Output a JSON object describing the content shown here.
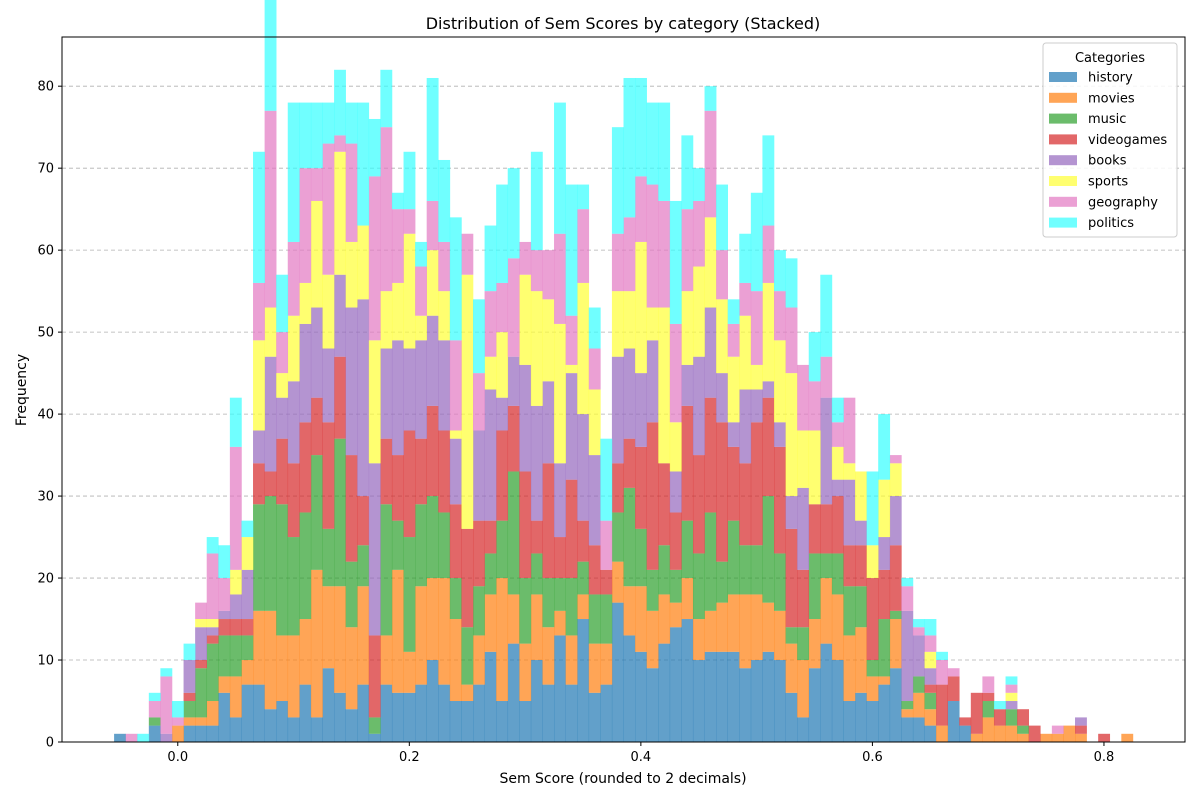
{
  "chart_data": {
    "type": "bar",
    "stacked": true,
    "title": "Distribution of Sem Scores by category (Stacked)",
    "xlabel": "Sem Score (rounded to 2 decimals)",
    "ylabel": "Frequency",
    "xlim": [
      -0.1,
      0.87
    ],
    "ylim": [
      0,
      86
    ],
    "xticks": [
      0.0,
      0.2,
      0.4,
      0.6,
      0.8
    ],
    "xtick_labels": [
      "0.0",
      "0.2",
      "0.4",
      "0.6",
      "0.8"
    ],
    "yticks": [
      0,
      10,
      20,
      30,
      40,
      50,
      60,
      70,
      80
    ],
    "ytick_labels": [
      "0",
      "10",
      "20",
      "30",
      "40",
      "50",
      "60",
      "70",
      "80"
    ],
    "grid": "y-dashed",
    "legend_title": "Categories",
    "legend_position": "top-right",
    "x": [
      -0.05,
      -0.04,
      -0.03,
      -0.02,
      -0.01,
      0.0,
      0.01,
      0.02,
      0.03,
      0.04,
      0.05,
      0.06,
      0.07,
      0.08,
      0.09,
      0.1,
      0.11,
      0.12,
      0.13,
      0.14,
      0.15,
      0.16,
      0.17,
      0.18,
      0.19,
      0.2,
      0.21,
      0.22,
      0.23,
      0.24,
      0.25,
      0.26,
      0.27,
      0.28,
      0.29,
      0.3,
      0.31,
      0.32,
      0.33,
      0.34,
      0.35,
      0.36,
      0.37,
      0.38,
      0.39,
      0.4,
      0.41,
      0.42,
      0.43,
      0.44,
      0.45,
      0.46,
      0.47,
      0.48,
      0.49,
      0.5,
      0.51,
      0.52,
      0.53,
      0.54,
      0.55,
      0.56,
      0.57,
      0.58,
      0.59,
      0.6,
      0.61,
      0.62,
      0.63,
      0.64,
      0.65,
      0.66,
      0.67,
      0.68,
      0.69,
      0.7,
      0.71,
      0.72,
      0.73,
      0.74,
      0.75,
      0.76,
      0.77,
      0.78,
      0.79,
      0.8,
      0.81,
      0.82
    ],
    "series": [
      {
        "name": "history",
        "color": "#1f77b4",
        "values": [
          1,
          0,
          0,
          2,
          0,
          0,
          2,
          2,
          2,
          6,
          3,
          7,
          7,
          4,
          5,
          3,
          7,
          3,
          9,
          6,
          4,
          7,
          1,
          7,
          6,
          6,
          7,
          10,
          7,
          5,
          5,
          7,
          11,
          5,
          12,
          5,
          10,
          7,
          13,
          7,
          15,
          6,
          7,
          17,
          13,
          11,
          9,
          12,
          14,
          15,
          10,
          11,
          11,
          11,
          9,
          10,
          11,
          10,
          6,
          3,
          9,
          12,
          10,
          5,
          6,
          5,
          7,
          9,
          3,
          3,
          2,
          0,
          5,
          2,
          0,
          0,
          0,
          0,
          0,
          0,
          0,
          0,
          0,
          0,
          0,
          0,
          0,
          0
        ]
      },
      {
        "name": "movies",
        "color": "#ff7f0e",
        "values": [
          0,
          0,
          0,
          0,
          0,
          2,
          1,
          1,
          3,
          2,
          5,
          3,
          9,
          12,
          8,
          10,
          8,
          18,
          10,
          13,
          10,
          12,
          0,
          6,
          15,
          5,
          12,
          10,
          13,
          10,
          2,
          6,
          7,
          15,
          6,
          7,
          8,
          7,
          3,
          6,
          3,
          6,
          5,
          5,
          6,
          8,
          7,
          6,
          3,
          5,
          5,
          5,
          6,
          7,
          9,
          8,
          6,
          6,
          6,
          7,
          6,
          8,
          8,
          8,
          8,
          3,
          1,
          6,
          1,
          3,
          2,
          2,
          0,
          0,
          1,
          3,
          2,
          2,
          1,
          0,
          1,
          1,
          2,
          1,
          0,
          0,
          0,
          1
        ]
      },
      {
        "name": "music",
        "color": "#2ca02c",
        "values": [
          0,
          0,
          0,
          1,
          0,
          0,
          2,
          6,
          7,
          5,
          5,
          3,
          13,
          14,
          16,
          12,
          13,
          14,
          7,
          18,
          8,
          5,
          2,
          16,
          6,
          14,
          10,
          10,
          8,
          5,
          7,
          6,
          5,
          7,
          15,
          8,
          5,
          6,
          4,
          7,
          4,
          6,
          6,
          6,
          12,
          7,
          5,
          6,
          4,
          7,
          8,
          12,
          5,
          9,
          6,
          6,
          13,
          7,
          2,
          4,
          8,
          3,
          5,
          6,
          5,
          2,
          7,
          1,
          1,
          2,
          2,
          0,
          0,
          0,
          0,
          2,
          0,
          2,
          1,
          0,
          0,
          0,
          0,
          0,
          0,
          0,
          0,
          0
        ]
      },
      {
        "name": "videogames",
        "color": "#d62728",
        "values": [
          0,
          0,
          0,
          0,
          0,
          0,
          1,
          1,
          1,
          2,
          2,
          2,
          5,
          3,
          8,
          9,
          11,
          7,
          13,
          10,
          13,
          6,
          10,
          8,
          8,
          13,
          8,
          11,
          10,
          9,
          12,
          8,
          4,
          11,
          8,
          13,
          4,
          14,
          5,
          12,
          5,
          6,
          3,
          6,
          6,
          10,
          18,
          10,
          7,
          14,
          12,
          14,
          17,
          9,
          10,
          15,
          12,
          13,
          12,
          7,
          6,
          6,
          7,
          5,
          5,
          10,
          6,
          8,
          0,
          0,
          1,
          5,
          3,
          1,
          5,
          1,
          2,
          0,
          2,
          2,
          0,
          0,
          0,
          1,
          0,
          1,
          0,
          0
        ]
      },
      {
        "name": "books",
        "color": "#9467bd",
        "values": [
          0,
          0,
          0,
          0,
          1,
          0,
          4,
          4,
          1,
          1,
          3,
          6,
          4,
          14,
          5,
          10,
          12,
          11,
          9,
          10,
          18,
          24,
          21,
          11,
          14,
          10,
          12,
          11,
          11,
          8,
          0,
          11,
          16,
          4,
          6,
          13,
          14,
          10,
          9,
          13,
          13,
          11,
          0,
          13,
          11,
          9,
          10,
          0,
          5,
          5,
          12,
          11,
          6,
          3,
          9,
          4,
          2,
          3,
          4,
          10,
          0,
          13,
          2,
          8,
          3,
          0,
          4,
          6,
          11,
          5,
          2,
          0,
          0,
          0,
          0,
          0,
          0,
          1,
          0,
          0,
          0,
          0,
          0,
          1,
          0,
          0,
          0,
          0
        ]
      },
      {
        "name": "sports",
        "color": "#ffff33",
        "values": [
          0,
          0,
          0,
          0,
          0,
          0,
          0,
          1,
          1,
          0,
          3,
          4,
          11,
          6,
          3,
          8,
          5,
          13,
          9,
          15,
          8,
          9,
          15,
          7,
          7,
          14,
          3,
          8,
          6,
          1,
          31,
          0,
          4,
          8,
          0,
          11,
          14,
          10,
          17,
          1,
          16,
          8,
          0,
          8,
          7,
          16,
          4,
          19,
          6,
          9,
          11,
          11,
          9,
          8,
          9,
          3,
          12,
          10,
          15,
          7,
          9,
          0,
          4,
          2,
          6,
          4,
          7,
          4,
          0,
          0,
          2,
          0,
          0,
          0,
          0,
          0,
          0,
          1,
          0,
          0,
          0,
          0,
          0,
          0,
          0,
          0,
          0,
          0
        ]
      },
      {
        "name": "geography",
        "color": "#e377c2",
        "values": [
          0,
          1,
          0,
          2,
          7,
          1,
          0,
          2,
          8,
          4,
          15,
          0,
          7,
          24,
          5,
          9,
          14,
          4,
          16,
          2,
          12,
          0,
          20,
          20,
          9,
          3,
          6,
          6,
          6,
          11,
          5,
          7,
          8,
          6,
          12,
          4,
          5,
          6,
          11,
          6,
          9,
          5,
          6,
          7,
          9,
          8,
          15,
          13,
          12,
          10,
          8,
          13,
          6,
          4,
          4,
          9,
          7,
          6,
          8,
          8,
          6,
          5,
          3,
          8,
          0,
          0,
          0,
          1,
          3,
          1,
          2,
          3,
          1,
          0,
          0,
          2,
          0,
          1,
          0,
          0,
          0,
          1,
          0,
          0,
          0,
          0,
          0,
          0
        ]
      },
      {
        "name": "politics",
        "color": "#33ffff",
        "values": [
          0,
          0,
          1,
          1,
          1,
          2,
          2,
          0,
          2,
          4,
          6,
          2,
          16,
          14,
          7,
          17,
          8,
          8,
          5,
          8,
          5,
          15,
          7,
          7,
          2,
          7,
          3,
          15,
          10,
          15,
          0,
          9,
          8,
          12,
          11,
          0,
          12,
          0,
          16,
          16,
          3,
          5,
          10,
          13,
          17,
          12,
          10,
          12,
          15,
          9,
          4,
          3,
          8,
          3,
          6,
          12,
          11,
          5,
          6,
          0,
          6,
          10,
          3,
          0,
          0,
          9,
          8,
          0,
          1,
          1,
          2,
          1,
          0,
          0,
          0,
          0,
          1,
          1,
          0,
          0,
          0,
          0,
          0,
          0,
          0,
          0,
          0,
          0
        ]
      }
    ]
  }
}
